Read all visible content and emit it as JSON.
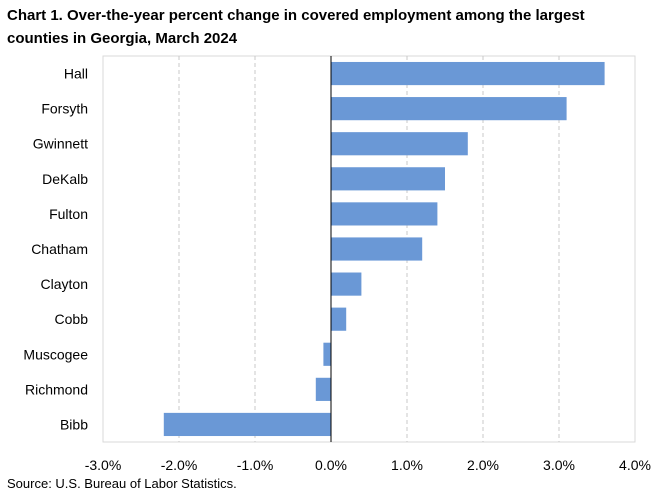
{
  "chart_data": {
    "type": "bar",
    "orientation": "horizontal",
    "title_lines": [
      "Chart 1. Over-the-year percent change in covered employment among the largest",
      "counties in Georgia, March 2024"
    ],
    "categories": [
      "Hall",
      "Forsyth",
      "Gwinnett",
      "DeKalb",
      "Fulton",
      "Chatham",
      "Clayton",
      "Cobb",
      "Muscogee",
      "Richmond",
      "Bibb"
    ],
    "values": [
      3.6,
      3.1,
      1.8,
      1.5,
      1.4,
      1.2,
      0.4,
      0.2,
      -0.1,
      -0.2,
      -2.2
    ],
    "xlim": [
      -3.0,
      4.0
    ],
    "xticks": [
      -3.0,
      -2.0,
      -1.0,
      0.0,
      1.0,
      2.0,
      3.0,
      4.0
    ],
    "xtick_labels": [
      "-3.0%",
      "-2.0%",
      "-1.0%",
      "0.0%",
      "1.0%",
      "2.0%",
      "3.0%",
      "4.0%"
    ],
    "xlabel": "",
    "ylabel": "",
    "grid": "vertical dashed",
    "bar_color": "#6a98d6",
    "grid_color": "#c8c8c8",
    "source": "Source: U.S. Bureau of Labor Statistics."
  }
}
